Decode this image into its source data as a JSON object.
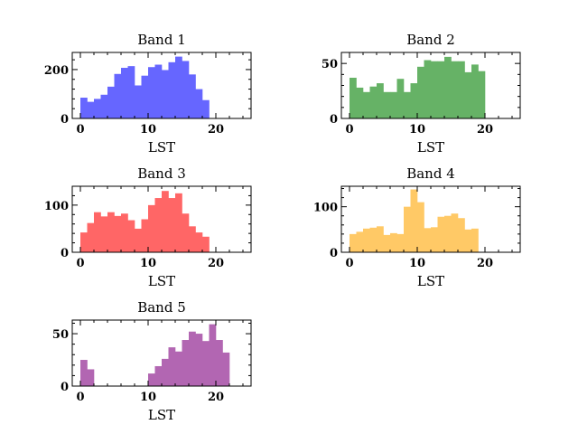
{
  "chart_data": [
    {
      "type": "bar",
      "title": "Band 1",
      "xlabel": "LST",
      "ylabel": "",
      "color": "#6666ff",
      "bin_width": 1,
      "x": [
        0,
        1,
        2,
        3,
        4,
        5,
        6,
        7,
        8,
        9,
        10,
        11,
        12,
        13,
        14,
        15,
        16,
        17,
        18,
        19,
        20,
        21,
        22,
        23
      ],
      "values": [
        85,
        68,
        80,
        97,
        130,
        182,
        207,
        214,
        135,
        175,
        210,
        220,
        198,
        230,
        253,
        235,
        180,
        120,
        75,
        0,
        0,
        0,
        0,
        0
      ],
      "xlim": [
        -1.2,
        25.2
      ],
      "ylim": [
        0,
        270
      ],
      "xticks": [
        0,
        10,
        20
      ],
      "xtick_labels": [
        "0",
        "10",
        "20"
      ],
      "yticks": [
        0,
        200
      ],
      "ytick_labels": [
        "0",
        "200"
      ]
    },
    {
      "type": "bar",
      "title": "Band 2",
      "xlabel": "LST",
      "ylabel": "",
      "color": "#66b266",
      "bin_width": 1,
      "x": [
        0,
        1,
        2,
        3,
        4,
        5,
        6,
        7,
        8,
        9,
        10,
        11,
        12,
        13,
        14,
        15,
        16,
        17,
        18,
        19,
        20,
        21,
        22,
        23
      ],
      "values": [
        37,
        28,
        24,
        29,
        32,
        24,
        24,
        36,
        24,
        32,
        47,
        53,
        52,
        52,
        56,
        52,
        52,
        42,
        49,
        43,
        0,
        0,
        0,
        0
      ],
      "xlim": [
        -1.2,
        25.2
      ],
      "ylim": [
        0,
        60
      ],
      "xticks": [
        0,
        10,
        20
      ],
      "xtick_labels": [
        "0",
        "10",
        "20"
      ],
      "yticks": [
        0,
        50
      ],
      "ytick_labels": [
        "0",
        "50"
      ]
    },
    {
      "type": "bar",
      "title": "Band 3",
      "xlabel": "LST",
      "ylabel": "",
      "color": "#ff6666",
      "bin_width": 1,
      "x": [
        0,
        1,
        2,
        3,
        4,
        5,
        6,
        7,
        8,
        9,
        10,
        11,
        12,
        13,
        14,
        15,
        16,
        17,
        18,
        19,
        20,
        21,
        22,
        23
      ],
      "values": [
        42,
        62,
        85,
        76,
        85,
        77,
        82,
        68,
        50,
        70,
        100,
        115,
        130,
        115,
        125,
        82,
        55,
        42,
        33,
        0,
        0,
        0,
        0,
        0
      ],
      "xlim": [
        -1.2,
        25.2
      ],
      "ylim": [
        0,
        140
      ],
      "xticks": [
        0,
        10,
        20
      ],
      "xtick_labels": [
        "0",
        "10",
        "20"
      ],
      "yticks": [
        0,
        100
      ],
      "ytick_labels": [
        "0",
        "100"
      ]
    },
    {
      "type": "bar",
      "title": "Band 4",
      "xlabel": "LST",
      "ylabel": "",
      "color": "#ffc966",
      "bin_width": 1,
      "x": [
        0,
        1,
        2,
        3,
        4,
        5,
        6,
        7,
        8,
        9,
        10,
        11,
        12,
        13,
        14,
        15,
        16,
        17,
        18,
        19,
        20,
        21,
        22,
        23
      ],
      "values": [
        40,
        45,
        52,
        54,
        57,
        38,
        42,
        40,
        100,
        138,
        110,
        53,
        55,
        78,
        80,
        85,
        75,
        50,
        52,
        0,
        0,
        0,
        0,
        0
      ],
      "xlim": [
        -1.2,
        25.2
      ],
      "ylim": [
        0,
        145
      ],
      "xticks": [
        0,
        10,
        20
      ],
      "xtick_labels": [
        "0",
        "10",
        "20"
      ],
      "yticks": [
        0,
        100
      ],
      "ytick_labels": [
        "0",
        "100"
      ]
    },
    {
      "type": "bar",
      "title": "Band 5",
      "xlabel": "LST",
      "ylabel": "",
      "color": "#b266b2",
      "bin_width": 1,
      "x": [
        0,
        1,
        2,
        3,
        4,
        5,
        6,
        7,
        8,
        9,
        10,
        11,
        12,
        13,
        14,
        15,
        16,
        17,
        18,
        19,
        20,
        21,
        22,
        23
      ],
      "values": [
        25,
        16,
        0,
        0,
        0,
        0,
        0,
        0,
        0,
        0,
        12,
        19,
        26,
        37,
        33,
        44,
        52,
        50,
        43,
        59,
        44,
        32,
        0,
        0
      ],
      "xlim": [
        -1.2,
        25.2
      ],
      "ylim": [
        0,
        63
      ],
      "xticks": [
        0,
        10,
        20
      ],
      "xtick_labels": [
        "0",
        "10",
        "20"
      ],
      "yticks": [
        0,
        50
      ],
      "ytick_labels": [
        "0",
        "50"
      ]
    }
  ]
}
